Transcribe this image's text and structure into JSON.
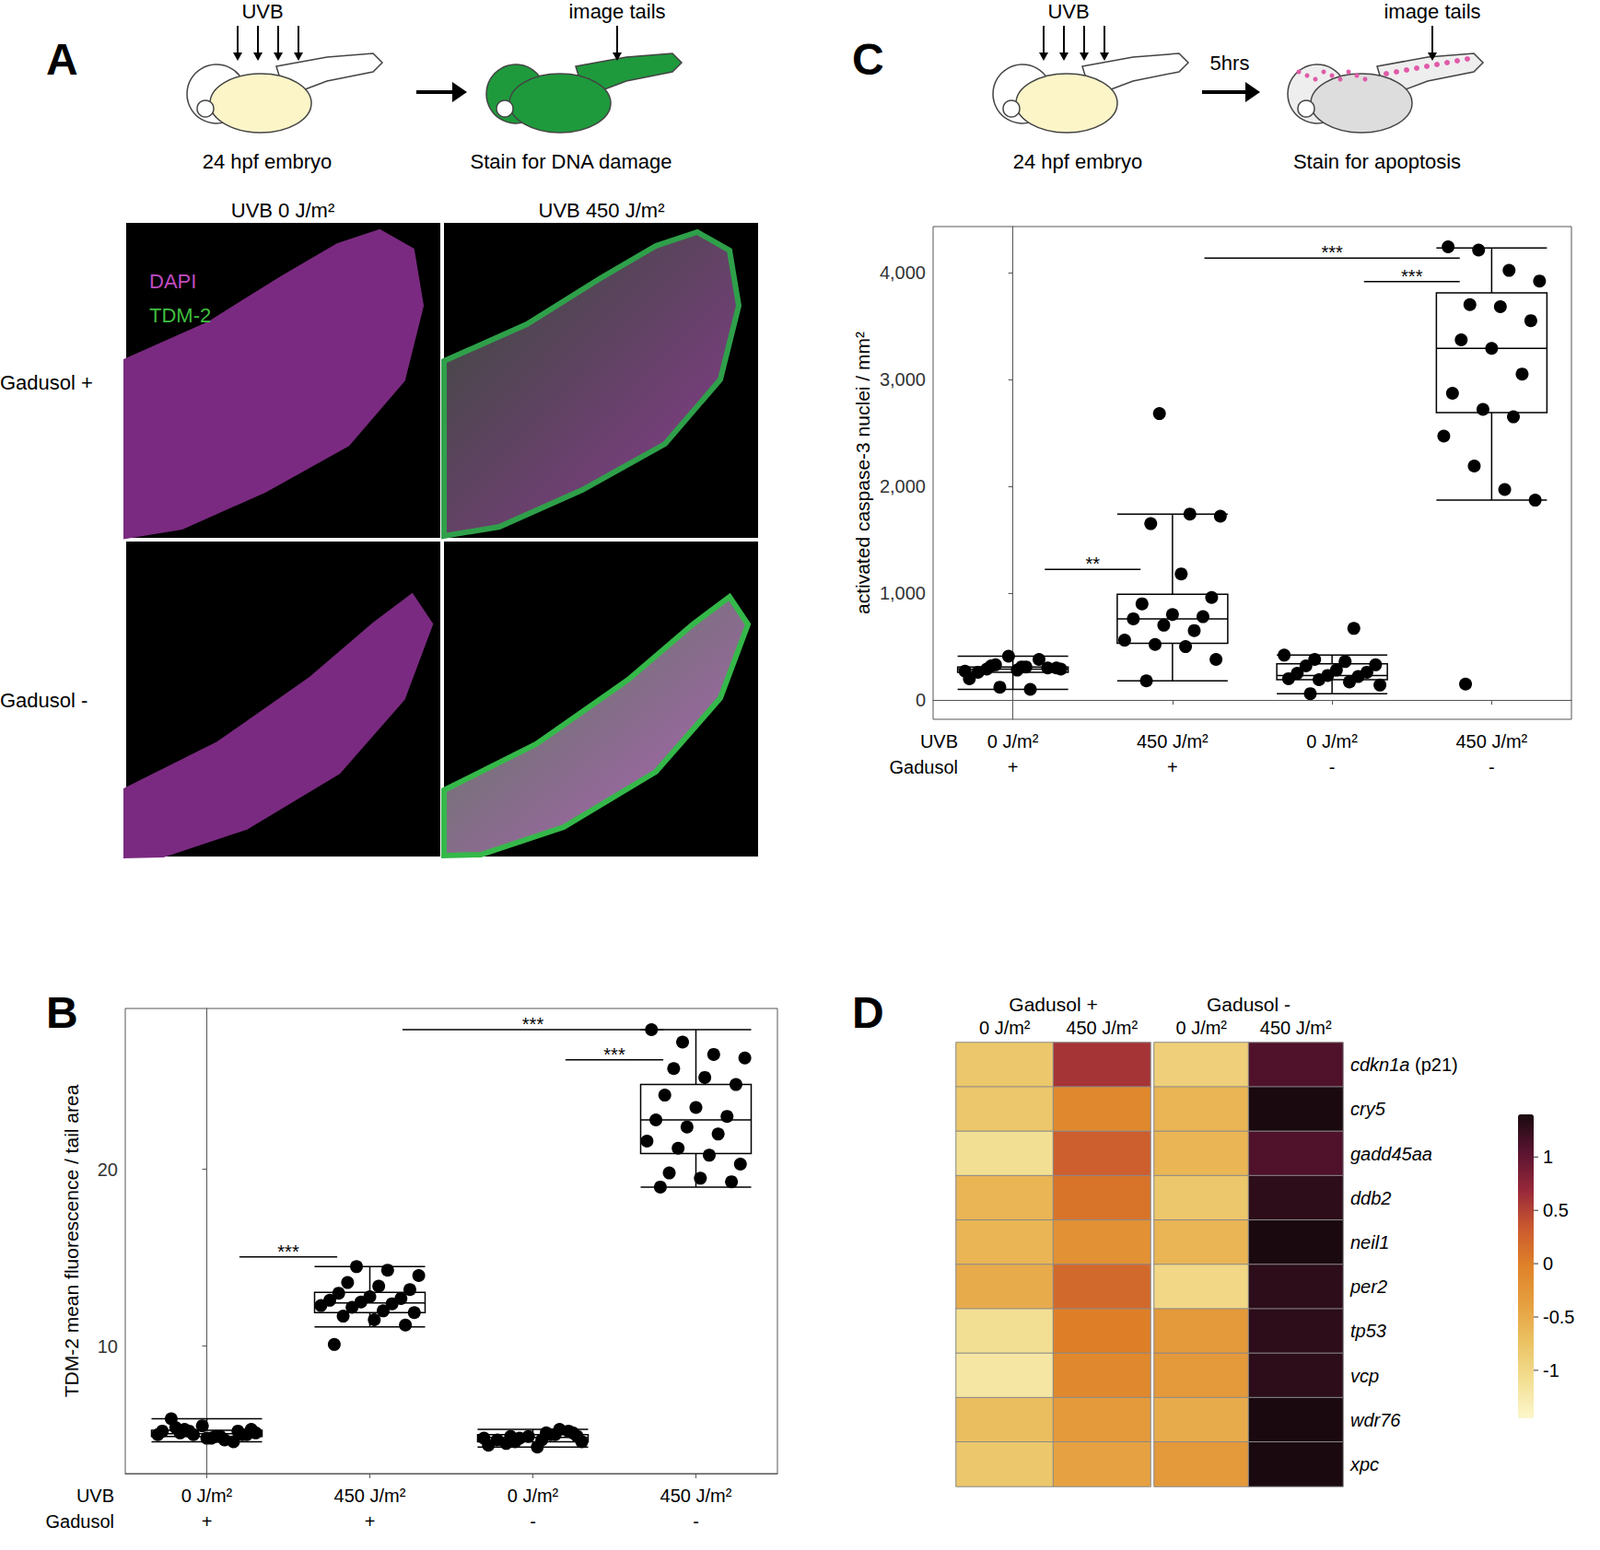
{
  "panel_letters": [
    "A",
    "B",
    "C",
    "D"
  ],
  "panel_a": {
    "schematic": {
      "dose_label": "UVB",
      "start": "24 hpf embryo",
      "end": "Stain for DNA damage",
      "imaging": "image tails"
    },
    "columns": [
      "UVB 0 J/m²",
      "UVB 450 J/m²"
    ],
    "rows": [
      "Gadusol +",
      "Gadusol -"
    ],
    "channels": [
      {
        "name": "DAPI",
        "color": "#c04cc0"
      },
      {
        "name": "TDM-2",
        "color": "#3fbf3f"
      }
    ]
  },
  "panel_c_schematic": {
    "dose_label": "UVB",
    "start": "24 hpf embryo",
    "delay": "5hrs",
    "end": "Stain for apoptosis",
    "imaging": "image tails"
  },
  "chart_data": [
    {
      "type": "boxplot",
      "y_label": "TDM-2 mean fluorescence / tail area",
      "x_rows": [
        {
          "label": "UVB",
          "values": [
            "0 J/m²",
            "450 J/m²",
            "0 J/m²",
            "450 J/m²"
          ]
        },
        {
          "label": "Gadusol",
          "values": [
            "+",
            "+",
            "-",
            "-"
          ]
        }
      ],
      "boxes": [
        [
          4.6,
          4.9,
          5.05,
          5.25,
          5.9
        ],
        [
          11.1,
          11.9,
          12.45,
          13.05,
          14.5
        ],
        [
          4.3,
          4.6,
          4.85,
          5.0,
          5.3
        ],
        [
          19.0,
          20.9,
          22.8,
          24.8,
          27.9
        ]
      ],
      "points": [
        [
          5.0,
          5.2,
          4.9,
          5.3,
          5.1,
          4.8,
          5.0,
          5.9,
          5.5,
          4.6,
          5.2,
          5.0,
          4.7,
          5.1,
          5.3,
          4.9,
          5.0,
          5.4,
          4.8,
          5.2
        ],
        [
          14.5,
          14.3,
          14.0,
          13.6,
          13.4,
          13.2,
          13.0,
          12.8,
          12.7,
          12.6,
          12.5,
          12.4,
          12.3,
          12.2,
          12.0,
          11.9,
          11.7,
          11.5,
          11.2,
          10.1
        ],
        [
          5.0,
          4.8,
          4.6,
          5.1,
          4.9,
          4.5,
          4.3,
          5.2,
          4.7,
          4.9,
          5.3,
          4.4,
          4.8,
          5.0,
          4.6,
          4.9,
          4.7,
          5.1
        ],
        [
          27.9,
          27.2,
          26.5,
          26.3,
          25.7,
          25.2,
          24.8,
          24.2,
          23.5,
          23.0,
          22.8,
          22.4,
          22.0,
          21.6,
          21.2,
          20.8,
          20.3,
          19.8,
          19.5,
          19.3,
          19.0
        ]
      ],
      "significance": [
        {
          "from": 0,
          "to": 1,
          "label": "***",
          "y": 15.05
        },
        {
          "from": 1,
          "to": 3,
          "label": "***",
          "y": 27.9
        },
        {
          "from": 2,
          "to": 3,
          "label": "***",
          "y": 26.2
        }
      ],
      "ylim": [
        2.8,
        29.1
      ],
      "yticks": [
        10,
        20
      ],
      "color": "#000000"
    },
    {
      "type": "boxplot",
      "y_label": "activated caspase-3 nuclei / mm²",
      "x_rows": [
        {
          "label": "UVB",
          "values": [
            "0 J/m²",
            "450 J/m²",
            "0 J/m²",
            "450 J/m²"
          ]
        },
        {
          "label": "Gadusol",
          "values": [
            "+",
            "+",
            "-",
            "-"
          ]
        }
      ],
      "boxes": [
        [
          100,
          260,
          290,
          310,
          410
        ],
        [
          180,
          530,
          760,
          990,
          1740
        ],
        [
          60,
          190,
          230,
          340,
          420
        ],
        [
          1870,
          2690,
          3290,
          3810,
          4230
        ]
      ],
      "points": [
        [
          270,
          330,
          310,
          300,
          290,
          280,
          300,
          260,
          410,
          380,
          200,
          120,
          100,
          290,
          320,
          310
        ],
        [
          2680,
          1740,
          1720,
          1650,
          1180,
          960,
          900,
          800,
          780,
          760,
          700,
          650,
          560,
          520,
          500,
          380,
          180
        ],
        [
          670,
          420,
          380,
          360,
          330,
          320,
          280,
          260,
          250,
          230,
          220,
          200,
          190,
          170,
          140,
          60
        ],
        [
          4240,
          4210,
          4020,
          3920,
          3700,
          3680,
          3550,
          3370,
          3290,
          3050,
          2870,
          2720,
          2650,
          2470,
          2190,
          1970,
          1870,
          150
        ]
      ],
      "significance": [
        {
          "from": 0,
          "to": 1,
          "label": "**",
          "y": 1222
        },
        {
          "from": 1,
          "to": 3,
          "label": "***",
          "y": 4135
        },
        {
          "from": 2,
          "to": 3,
          "label": "***",
          "y": 3916
        }
      ],
      "ylim": [
        -180,
        4430
      ],
      "yticks": [
        0,
        1000,
        2000,
        3000,
        4000
      ],
      "color": "#000000"
    },
    {
      "type": "heatmap",
      "groups": [
        {
          "name": "Gadusol +",
          "columns": [
            "0 J/m²",
            "450 J/m²"
          ]
        },
        {
          "name": "Gadusol -",
          "columns": [
            "0 J/m²",
            "450 J/m²"
          ]
        }
      ],
      "rows": [
        "cdkn1a (p21)",
        "cry5",
        "gadd45aa",
        "ddb2",
        "neil1",
        "per2",
        "tp53",
        "vcp",
        "wdr76",
        "xpc"
      ],
      "values": [
        [
          -0.8,
          0.6,
          -0.9,
          1.1
        ],
        [
          -0.8,
          -0.1,
          -0.6,
          1.4
        ],
        [
          -1.1,
          0.3,
          -0.6,
          1.1
        ],
        [
          -0.6,
          0.1,
          -0.8,
          1.3
        ],
        [
          -0.6,
          -0.2,
          -0.6,
          1.4
        ],
        [
          -0.5,
          0.2,
          -1.0,
          1.3
        ],
        [
          -1.1,
          0.0,
          -0.3,
          1.3
        ],
        [
          -1.2,
          -0.1,
          -0.3,
          1.3
        ],
        [
          -0.7,
          -0.3,
          -0.5,
          1.4
        ],
        [
          -0.8,
          -0.4,
          -0.3,
          1.4
        ]
      ],
      "colorbar": {
        "range": [
          -1.45,
          1.4
        ],
        "ticks": [
          -1,
          -0.5,
          0,
          0.5,
          1
        ],
        "colors": [
          "#fcf7cc",
          "#f3df93",
          "#ebc263",
          "#e6a040",
          "#df8228",
          "#cb5a2f",
          "#98283a",
          "#5a1430",
          "#1a0a10"
        ]
      }
    }
  ]
}
